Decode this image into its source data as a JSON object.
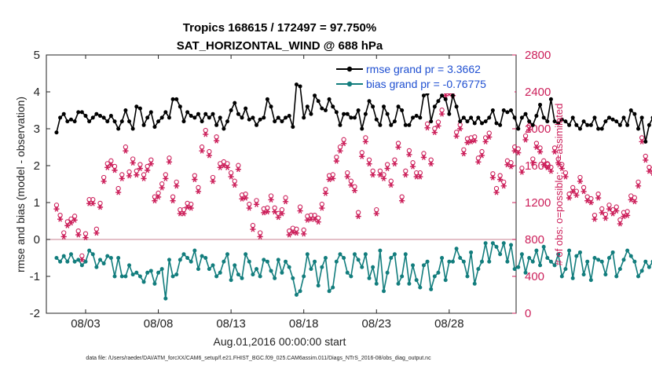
{
  "chart_data": {
    "type": "line",
    "title": "Tropics 168615 / 172497 = 97.750%",
    "subtitle": "SAT_HORIZONTAL_WIND @ 688 hPa",
    "xlabel": "Aug.01,2016 00:00:00 start",
    "ylabel": "rmse and bias (model - observation)",
    "y2label": "# of obs: o=possible; ∗=assimilated",
    "footnote": "data file: /Users/raeder/DAI/ATM_forcXX/CAM6_setup/f.e21.FHIST_BGC.f09_025.CAM6assim.011/Diags_NTrS_2016-08/obs_diag_output.nc",
    "xlim": [
      0.3,
      32.6
    ],
    "ylim": [
      -2,
      5
    ],
    "y2lim": [
      0,
      2800
    ],
    "x_ticks": [
      3,
      8,
      13,
      18,
      23,
      28
    ],
    "x_tick_labels": [
      "08/03",
      "08/08",
      "08/13",
      "08/18",
      "08/23",
      "08/28"
    ],
    "y_ticks": [
      -2,
      -1,
      0,
      1,
      2,
      3,
      4,
      5
    ],
    "y2_ticks": [
      0,
      400,
      800,
      1200,
      1600,
      2000,
      2400,
      2800
    ],
    "zero_line": 0,
    "legend_position": "top-right",
    "colors": {
      "rmse": "#000000",
      "bias": "#127d7d",
      "obs": "#cc1f5a",
      "zero": "#d49aa6"
    },
    "series": [
      {
        "name": "rmse grand pr = 3.3662",
        "values": [
          2.9,
          3.3,
          3.4,
          3.2,
          3.25,
          3.2,
          3.45,
          3.45,
          3.35,
          3.2,
          3.3,
          3.4,
          3.35,
          3.3,
          3.2,
          3.35,
          3.2,
          3.0,
          3.2,
          3.5,
          3.2,
          3.0,
          3.6,
          3.55,
          3.1,
          3.3,
          3.45,
          3.05,
          3.2,
          3.3,
          3.45,
          3.3,
          3.8,
          3.8,
          3.6,
          3.2,
          3.45,
          3.35,
          3.3,
          3.4,
          3.2,
          3.4,
          3.3,
          3.4,
          3.1,
          3.3,
          3.0,
          3.2,
          3.5,
          3.7,
          3.4,
          3.3,
          3.55,
          3.25,
          3.3,
          3.1,
          3.25,
          3.3,
          3.8,
          3.6,
          3.2,
          3.3,
          3.2,
          3.3,
          3.35,
          3.05,
          4.2,
          4.15,
          3.3,
          3.6,
          3.4,
          3.9,
          3.75,
          3.55,
          3.5,
          3.8,
          3.6,
          3.45,
          3.1,
          3.4,
          3.4,
          3.3,
          3.3,
          3.5,
          3.0,
          3.4,
          3.75,
          3.6,
          3.25,
          3.1,
          3.6,
          3.4,
          3.1,
          3.2,
          3.6,
          3.5,
          3.1,
          3.1,
          3.3,
          3.35,
          3.3,
          3.9,
          3.95,
          3.2,
          3.6,
          3.75,
          3.9,
          3.8,
          3.4,
          3.9,
          3.6,
          3.2,
          3.3,
          3.2,
          3.3,
          3.15,
          3.3,
          3.15,
          3.2,
          3.3,
          3.5,
          3.15,
          3.1,
          3.5,
          3.45,
          3.5,
          3.3,
          3.0,
          3.3,
          3.4,
          3.2,
          3.1,
          3.35,
          3.65,
          3.3,
          3.2,
          3.8,
          3.2,
          3.15,
          3.25,
          3.2,
          3.1,
          3.3,
          3.1,
          3.0,
          3.2,
          3.1,
          3.1,
          3.3,
          3.0,
          3.0,
          3.2,
          3.3,
          3.25,
          3.2,
          3.1,
          3.3,
          3.1,
          3.5,
          3.4,
          3.0,
          3.3,
          2.65,
          3.1,
          3.3,
          3.0,
          3.2,
          3.8,
          3.7,
          3.4,
          3.35
        ]
      },
      {
        "name": "bias grand pr = -0.76775",
        "values": [
          -0.5,
          -0.6,
          -0.45,
          -0.6,
          -0.4,
          -0.6,
          -0.55,
          -0.7,
          -0.6,
          -0.3,
          -0.4,
          -0.75,
          -0.55,
          -0.65,
          -0.45,
          -0.5,
          -1.0,
          -0.5,
          -1.0,
          -1.0,
          -0.7,
          -0.95,
          -0.9,
          -1.0,
          -1.15,
          -0.9,
          -0.85,
          -1.2,
          -0.9,
          -0.8,
          -1.6,
          -0.55,
          -1.0,
          -0.95,
          -0.55,
          -0.4,
          -0.5,
          -0.6,
          -0.3,
          -0.8,
          -0.45,
          -0.5,
          -0.8,
          -0.7,
          -1.0,
          -0.9,
          -0.6,
          -0.4,
          -1.1,
          -0.7,
          -0.95,
          -1.05,
          -0.4,
          -0.6,
          -0.95,
          -0.8,
          -1.0,
          -0.55,
          -0.6,
          -0.85,
          -1.05,
          -0.55,
          -0.9,
          -0.6,
          -0.75,
          -1.05,
          -1.5,
          -1.4,
          -1.0,
          -0.4,
          -0.8,
          -0.6,
          -1.25,
          -0.75,
          -0.5,
          -1.4,
          -1.3,
          -0.6,
          -0.4,
          -0.5,
          -0.9,
          -1.0,
          -0.4,
          -0.55,
          -0.75,
          -0.4,
          -1.05,
          -0.75,
          -1.2,
          -0.3,
          -1.4,
          -0.9,
          -0.5,
          -0.4,
          -1.2,
          -1.0,
          -0.4,
          -1.2,
          -0.7,
          -1.1,
          -1.3,
          -0.7,
          -0.6,
          -1.35,
          -1.0,
          -0.9,
          -0.5,
          -1.1,
          -0.6,
          -0.6,
          -0.25,
          -0.5,
          -0.6,
          -1.0,
          -0.35,
          -1.2,
          -0.8,
          -0.6,
          -0.1,
          -0.6,
          -0.1,
          -0.2,
          -0.4,
          -0.1,
          -0.6,
          -0.15,
          -0.8,
          -0.75,
          -0.4,
          -0.9,
          -0.5,
          -0.6,
          -0.3,
          -0.7,
          -0.2,
          -0.5,
          -0.6,
          -0.7,
          -0.4,
          -1.0,
          -0.8,
          -0.3,
          -1.05,
          -0.45,
          -0.35,
          -0.95,
          -0.6,
          -1.1,
          -0.5,
          -0.55,
          -0.6,
          -0.95,
          -0.5,
          -0.35,
          -1.0,
          -0.8,
          -0.55,
          -0.3,
          -0.45,
          -0.6,
          -1.0,
          -0.85,
          -0.6,
          -0.75,
          -0.6,
          -0.9,
          -0.35,
          -0.5,
          -0.7,
          -0.75,
          -0.4,
          -0.65,
          -0.75,
          -1.0,
          -0.9
        ]
      }
    ],
    "obs_possible": [
      1130,
      1020,
      830,
      950,
      980,
      1010,
      850,
      580,
      820,
      1190,
      1190,
      870,
      1150,
      1430,
      1580,
      1610,
      1550,
      1310,
      1460,
      1760,
      1490,
      1630,
      1500,
      1570,
      1460,
      1550,
      1620,
      1220,
      1260,
      1360,
      1460,
      1640,
      1220,
      1380,
      1080,
      1080,
      1150,
      1140,
      1450,
      1320,
      1760,
      1940,
      1710,
      1430,
      1870,
      1580,
      1600,
      1580,
      1480,
      1390,
      1560,
      1240,
      1250,
      1140,
      910,
      1180,
      830,
      1090,
      1100,
      1230,
      1100,
      1040,
      1080,
      1210,
      850,
      880,
      870,
      1110,
      860,
      1010,
      1020,
      1020,
      990,
      1140,
      1300,
      1450,
      1460,
      1650,
      1760,
      1840,
      1480,
      1390,
      1330,
      1050,
      1700,
      1860,
      1620,
      1500,
      1080,
      1500,
      1460,
      1570,
      1390,
      1620,
      1800,
      1220,
      1500,
      1720,
      1590,
      1480,
      1480,
      1690,
      2010,
      1620,
      1960,
      2030,
      2160,
      2360,
      2380,
      2360,
      1920,
      2000,
      1730,
      1850,
      1860,
      1870,
      1640,
      1710,
      1860,
      1910,
      1470,
      1310,
      1450,
      1380,
      1610,
      1590,
      1760,
      1740,
      1530,
      1880,
      1990,
      1630,
      1800,
      1750,
      1610,
      1580,
      1540,
      1750,
      1630,
      1570,
      1480,
      1250,
      1320,
      1280,
      1430,
      1320,
      1220,
      1200,
      1020,
      1250,
      1090,
      1030,
      1130,
      1080,
      1110,
      970,
      1050,
      1060,
      1230,
      1210,
      1380,
      1860,
      1660,
      1540,
      1520,
      1340,
      1210,
      1650,
      1650,
      1290,
      1140,
      1210
    ]
  },
  "x_values_note": "each series has one value per 6-hour cycle starting Aug.01 00Z",
  "axis_color": "#222222"
}
